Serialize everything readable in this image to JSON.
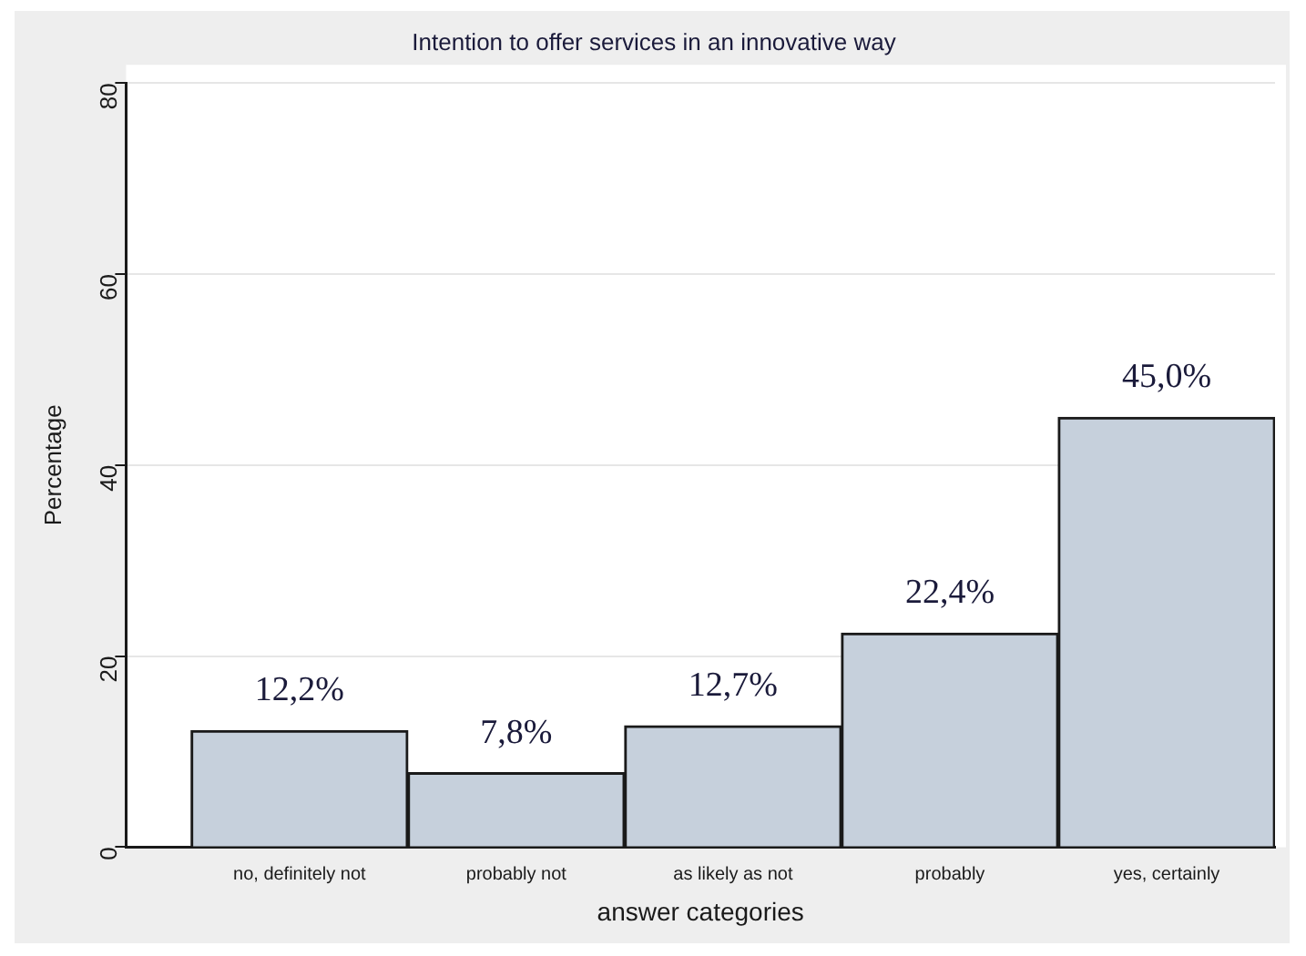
{
  "chart_data": {
    "type": "bar",
    "title": "Intention to offer services in an innovative way",
    "xlabel": "answer categories",
    "ylabel": "Percentage",
    "categories": [
      "no, definitely not",
      "probably not",
      "as likely as not",
      "probably",
      "yes, certainly"
    ],
    "values": [
      12.2,
      7.8,
      12.7,
      22.4,
      45.0
    ],
    "value_labels": [
      "12,2%",
      "7,8%",
      "12,7%",
      "22,4%",
      "45,0%"
    ],
    "color": "#c6d0dc",
    "ylim": [
      0,
      80
    ],
    "yticks": [
      0,
      20,
      40,
      60,
      80
    ],
    "grid": "y",
    "legend": false
  }
}
